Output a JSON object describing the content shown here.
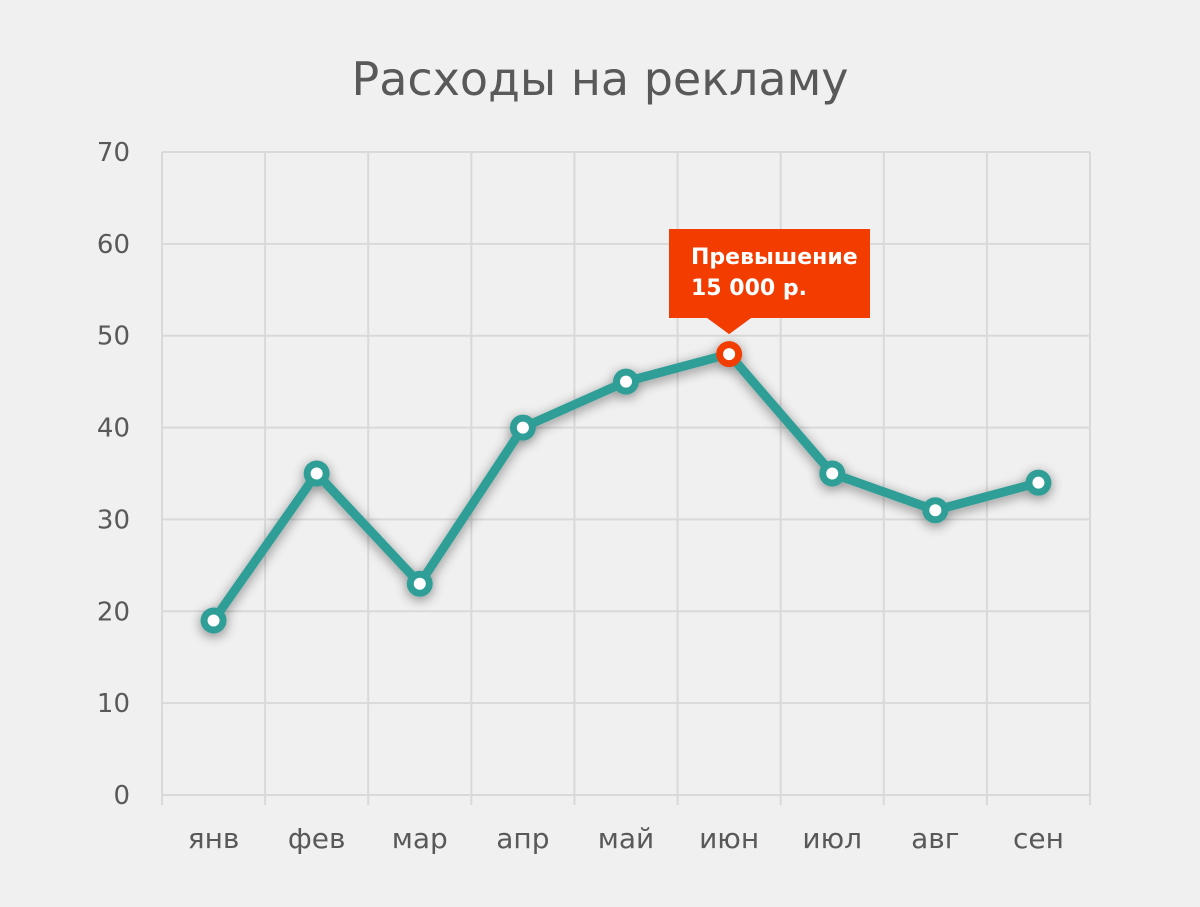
{
  "chart_data": {
    "type": "line",
    "title": "Расходы на рекламу",
    "categories": [
      "янв",
      "фев",
      "мар",
      "апр",
      "май",
      "июн",
      "июл",
      "авг",
      "сен"
    ],
    "series": [
      {
        "values": [
          19,
          35,
          23,
          40,
          45,
          48,
          35,
          31,
          34
        ]
      }
    ],
    "ylim": [
      0,
      70
    ],
    "yticks": [
      0,
      10,
      20,
      30,
      40,
      50,
      60,
      70
    ],
    "grid": true,
    "annotation": {
      "category": "июн",
      "lines": [
        "Превышение",
        "15 000 р."
      ]
    },
    "colors": {
      "line": "#2e9e96",
      "highlight": "#f23c00",
      "grid": "#d9d9d9",
      "text": "#595959",
      "background": "#f0f0f0"
    }
  }
}
